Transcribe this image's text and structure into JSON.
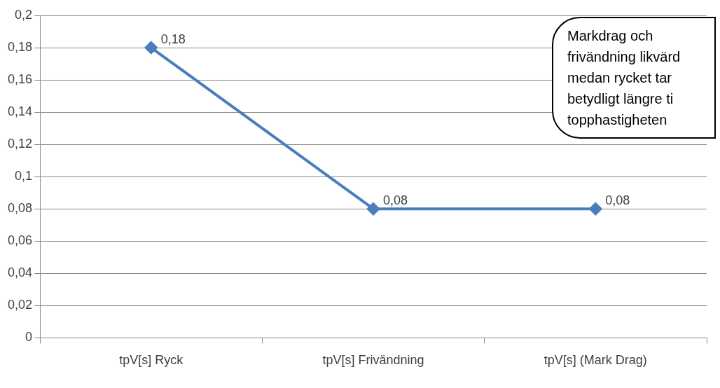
{
  "chart_data": {
    "type": "line",
    "categories": [
      "tpV[s] Ryck",
      "tpV[s] Frivändning",
      "tpV[s] (Mark Drag)"
    ],
    "series": [
      {
        "color": "#4a7ebb",
        "values": [
          0.18,
          0.08,
          0.08
        ],
        "value_labels": [
          "0,18",
          "0,08",
          "0,08"
        ]
      }
    ],
    "ylim": [
      0,
      0.2
    ],
    "yticks": [
      0,
      {
        "value": 0.02,
        "label": "0,02"
      },
      {
        "value": 0.04,
        "label": "0,04"
      },
      {
        "value": 0.06,
        "label": "0,06"
      },
      {
        "value": 0.08,
        "label": "0,08"
      },
      {
        "value": 0.1,
        "label": "0,1"
      },
      {
        "value": 0.12,
        "label": "0,12"
      },
      {
        "value": 0.14,
        "label": "0,14"
      },
      {
        "value": 0.16,
        "label": "0,16"
      },
      {
        "value": 0.18,
        "label": "0,18"
      },
      {
        "value": 0.2,
        "label": "0,2"
      }
    ],
    "grid": "y",
    "legend": false,
    "marker": "diamond",
    "line_style": "solid",
    "annotations": [
      "Markdrag och frivändning likvärd medan rycket tar betydligt längre ti topphastigheten"
    ]
  }
}
